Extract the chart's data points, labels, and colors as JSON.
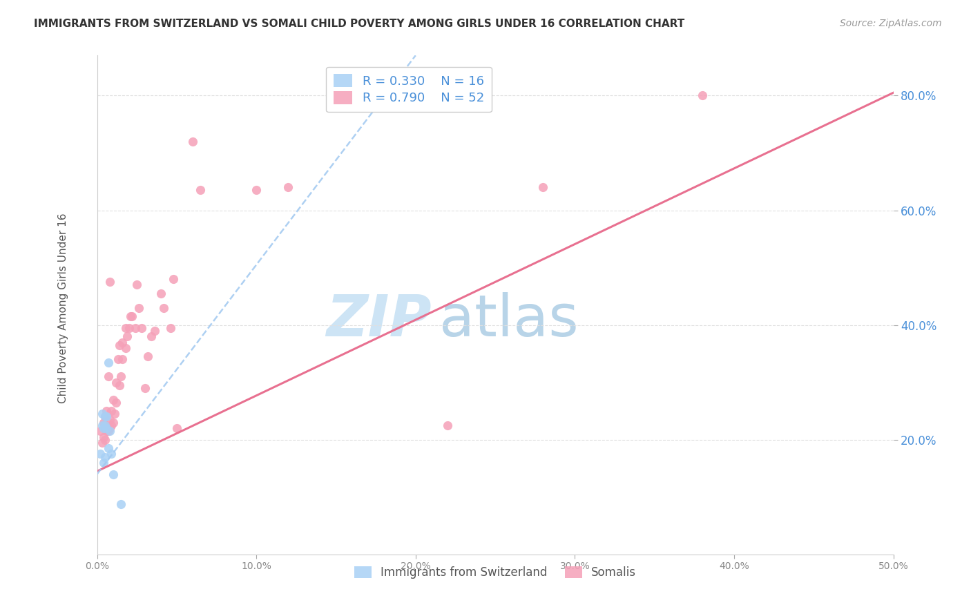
{
  "title": "IMMIGRANTS FROM SWITZERLAND VS SOMALI CHILD POVERTY AMONG GIRLS UNDER 16 CORRELATION CHART",
  "source": "Source: ZipAtlas.com",
  "ylabel": "Child Poverty Among Girls Under 16",
  "xlim": [
    0.0,
    0.5
  ],
  "ylim": [
    0.0,
    0.87
  ],
  "xticks": [
    0.0,
    0.1,
    0.2,
    0.3,
    0.4,
    0.5
  ],
  "yticks": [
    0.2,
    0.4,
    0.6,
    0.8
  ],
  "ytick_labels": [
    "20.0%",
    "40.0%",
    "60.0%",
    "80.0%"
  ],
  "xtick_labels": [
    "0.0%",
    "10.0%",
    "20.0%",
    "30.0%",
    "40.0%",
    "50.0%"
  ],
  "watermark_zip": "ZIP",
  "watermark_atlas": "atlas",
  "watermark_color_zip": "#c8dff0",
  "watermark_color_atlas": "#b8d4ea",
  "swiss_color": "#a8d0f5",
  "somali_color": "#f5a0b8",
  "swiss_line_color": "#a0c8f0",
  "somali_line_color": "#e87090",
  "title_color": "#333333",
  "source_color": "#999999",
  "tick_color_x": "#888888",
  "right_tick_color": "#4a90d9",
  "grid_color": "#e0e0e0",
  "legend_border_color": "#cccccc",
  "swiss_R": 0.33,
  "swiss_N": 16,
  "somali_R": 0.79,
  "somali_N": 52,
  "swiss_points_x": [
    0.002,
    0.003,
    0.003,
    0.004,
    0.004,
    0.005,
    0.005,
    0.005,
    0.006,
    0.006,
    0.007,
    0.007,
    0.008,
    0.009,
    0.01,
    0.015
  ],
  "swiss_points_y": [
    0.175,
    0.225,
    0.245,
    0.16,
    0.22,
    0.17,
    0.225,
    0.24,
    0.22,
    0.24,
    0.335,
    0.185,
    0.215,
    0.175,
    0.14,
    0.088
  ],
  "somali_points_x": [
    0.002,
    0.003,
    0.004,
    0.004,
    0.005,
    0.005,
    0.006,
    0.006,
    0.007,
    0.007,
    0.008,
    0.008,
    0.008,
    0.009,
    0.009,
    0.01,
    0.01,
    0.011,
    0.012,
    0.012,
    0.013,
    0.014,
    0.014,
    0.015,
    0.016,
    0.016,
    0.018,
    0.018,
    0.019,
    0.02,
    0.021,
    0.022,
    0.024,
    0.025,
    0.026,
    0.028,
    0.03,
    0.032,
    0.034,
    0.036,
    0.04,
    0.042,
    0.046,
    0.048,
    0.05,
    0.06,
    0.065,
    0.1,
    0.12,
    0.22,
    0.28,
    0.38
  ],
  "somali_points_y": [
    0.215,
    0.195,
    0.205,
    0.23,
    0.2,
    0.24,
    0.215,
    0.25,
    0.215,
    0.31,
    0.22,
    0.235,
    0.475,
    0.225,
    0.25,
    0.23,
    0.27,
    0.245,
    0.265,
    0.3,
    0.34,
    0.295,
    0.365,
    0.31,
    0.34,
    0.37,
    0.36,
    0.395,
    0.38,
    0.395,
    0.415,
    0.415,
    0.395,
    0.47,
    0.43,
    0.395,
    0.29,
    0.345,
    0.38,
    0.39,
    0.455,
    0.43,
    0.395,
    0.48,
    0.22,
    0.72,
    0.635,
    0.635,
    0.64,
    0.225,
    0.64,
    0.8
  ],
  "swiss_line_x0": 0.0,
  "swiss_line_y0": 0.14,
  "swiss_line_x1": 0.2,
  "swiss_line_y1": 0.87,
  "somali_line_x0": 0.0,
  "somali_line_y0": 0.145,
  "somali_line_x1": 0.5,
  "somali_line_y1": 0.805,
  "title_fontsize": 11,
  "tick_fontsize": 10,
  "legend_fontsize": 12,
  "source_fontsize": 10,
  "marker_size": 90
}
